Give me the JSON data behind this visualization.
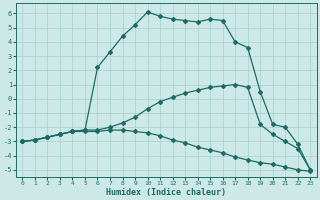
{
  "xlabel": "Humidex (Indice chaleur)",
  "bg_color": "#cce9e8",
  "line_color": "#1e6b65",
  "grid_color": "#a8cece",
  "xlim": [
    -0.5,
    23.5
  ],
  "ylim": [
    -5.5,
    6.7
  ],
  "xticks": [
    0,
    1,
    2,
    3,
    4,
    5,
    6,
    7,
    8,
    9,
    10,
    11,
    12,
    13,
    14,
    15,
    16,
    17,
    18,
    19,
    20,
    21,
    22,
    23
  ],
  "yticks": [
    -5,
    -4,
    -3,
    -2,
    -1,
    0,
    1,
    2,
    3,
    4,
    5,
    6
  ],
  "curve_upper_x": [
    0,
    1,
    2,
    3,
    4,
    5,
    6,
    7,
    8,
    9,
    10,
    11,
    12,
    13,
    14,
    15,
    16,
    17,
    18,
    19,
    20,
    21,
    22,
    23
  ],
  "curve_upper_y": [
    -3.0,
    -2.9,
    -2.7,
    -2.5,
    -2.3,
    -2.2,
    2.2,
    3.3,
    4.4,
    5.2,
    6.1,
    5.8,
    5.6,
    5.5,
    5.4,
    5.6,
    5.5,
    4.0,
    3.6,
    0.5,
    -1.8,
    -2.0,
    -3.2,
    -5.0
  ],
  "curve_mid_x": [
    0,
    1,
    2,
    3,
    4,
    5,
    6,
    7,
    8,
    9,
    10,
    11,
    12,
    13,
    14,
    15,
    16,
    17,
    18,
    19,
    20,
    21,
    22,
    23
  ],
  "curve_mid_y": [
    -3.0,
    -2.9,
    -2.7,
    -2.5,
    -2.3,
    -2.2,
    -2.2,
    -2.0,
    -1.7,
    -1.3,
    -0.7,
    -0.2,
    0.1,
    0.4,
    0.6,
    0.8,
    0.9,
    1.0,
    0.8,
    -1.8,
    -2.5,
    -3.0,
    -3.5,
    -5.0
  ],
  "curve_lower_x": [
    0,
    1,
    2,
    3,
    4,
    5,
    6,
    7,
    8,
    9,
    10,
    11,
    12,
    13,
    14,
    15,
    16,
    17,
    18,
    19,
    20,
    21,
    22,
    23
  ],
  "curve_lower_y": [
    -3.0,
    -2.9,
    -2.7,
    -2.5,
    -2.3,
    -2.3,
    -2.3,
    -2.2,
    -2.2,
    -2.3,
    -2.4,
    -2.6,
    -2.9,
    -3.1,
    -3.4,
    -3.6,
    -3.8,
    -4.1,
    -4.3,
    -4.5,
    -4.6,
    -4.8,
    -5.0,
    -5.1
  ]
}
